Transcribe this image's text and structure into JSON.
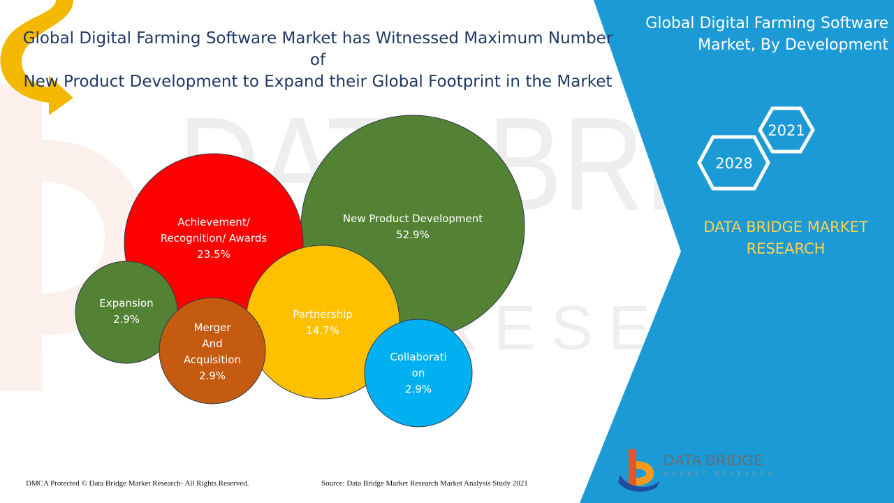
{
  "headline": {
    "line1": "Global Digital Farming Software Market has Witnessed Maximum Number of",
    "line2": "New Product Development to Expand their Global Footprint in the Market"
  },
  "side_panel": {
    "title_line1": "Global Digital Farming Software",
    "title_line2": "Market, By Development",
    "year_start": "2021",
    "year_end": "2028",
    "brand_line1": "DATA BRIDGE MARKET",
    "brand_line2": "RESEARCH"
  },
  "footer": {
    "copyright": "DMCA Protected © Data Bridge Market Research- All Rights Reserved.",
    "source": "Source: Data Bridge Market Research Market Analysis Study 2021"
  },
  "logo": {
    "name": "DATA BRIDGE",
    "tagline": "MARKET RESEARCH"
  },
  "colors": {
    "panel_blue": "#1b9ad6",
    "green": "#548235",
    "red": "#ff0000",
    "orange": "#c55a11",
    "yellow": "#ffc000",
    "cyan": "#00b0f0",
    "arrow": "#f5b800"
  },
  "chart_data": {
    "type": "bubble",
    "title": "",
    "series": [
      {
        "name": "New Product Development",
        "label_lines": [
          "New Product Development",
          "52.9%"
        ],
        "value": 52.9,
        "color": "#548235"
      },
      {
        "name": "Achievement/ Recognition/ Awards",
        "label_lines": [
          "Achievement/",
          "Recognition/ Awards",
          "23.5%"
        ],
        "value": 23.5,
        "color": "#ff0000"
      },
      {
        "name": "Partnership",
        "label_lines": [
          "Partnership",
          "14.7%"
        ],
        "value": 14.7,
        "color": "#ffc000"
      },
      {
        "name": "Expansion",
        "label_lines": [
          "Expansion",
          "2.9%"
        ],
        "value": 2.9,
        "color": "#548235"
      },
      {
        "name": "Merger And Acquisition",
        "label_lines": [
          "Merger",
          "And",
          "Acquisition",
          "2.9%"
        ],
        "value": 2.9,
        "color": "#c55a11"
      },
      {
        "name": "Collaboration",
        "label_lines": [
          "Collaborati",
          "on",
          "2.9%"
        ],
        "value": 2.9,
        "color": "#00b0f0"
      }
    ]
  }
}
